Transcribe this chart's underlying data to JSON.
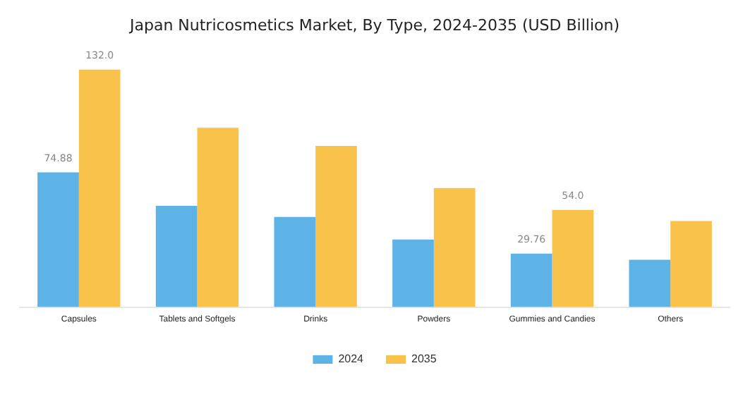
{
  "chart_data": {
    "type": "bar",
    "title": "Japan Nutricosmetics Market, By Type, 2024-2035 (USD Billion)",
    "categories": [
      "Capsules",
      "Tablets and Softgels",
      "Drinks",
      "Powders",
      "Gummies and Candies",
      "Others"
    ],
    "series": [
      {
        "name": "2024",
        "color": "#5db3e6",
        "values": [
          74.88,
          56.3,
          50.1,
          37.6,
          29.76,
          26.3
        ],
        "value_labels": [
          "74.88",
          null,
          null,
          null,
          "29.76",
          null
        ]
      },
      {
        "name": "2035",
        "color": "#f9c24a",
        "values": [
          132.0,
          99.7,
          89.6,
          66.2,
          54.0,
          47.9
        ],
        "value_labels": [
          "132.0",
          null,
          null,
          null,
          "54.0",
          null
        ]
      }
    ],
    "legend": "bottom",
    "grid": false
  }
}
